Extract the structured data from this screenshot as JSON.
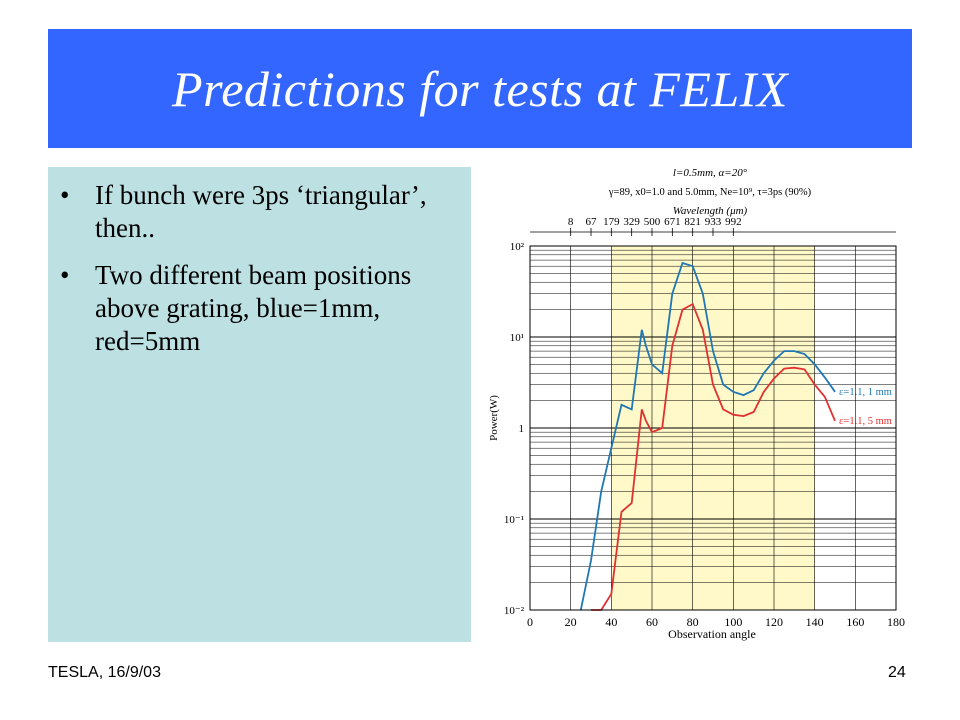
{
  "slide": {
    "title": "Predictions for tests at FELIX",
    "bullets": [
      "If bunch were 3ps ‘triangular’, then..",
      "Two different beam positions above grating, blue=1mm, red=5mm"
    ],
    "footer_left": "TESLA, 16/9/03",
    "page_number": "24"
  },
  "chart_data": {
    "type": "line",
    "header_line1": "l=0.5mm, α=20°",
    "header_line2": "γ=89, x0=1.0 and 5.0mm, Ne=10⁹, τ=3ps (90%)",
    "top_axis_label": "Wavelength (μm)",
    "top_ticks": [
      {
        "angle": 20,
        "label": "8"
      },
      {
        "angle": 30,
        "label": "67"
      },
      {
        "angle": 40,
        "label": "179"
      },
      {
        "angle": 50,
        "label": "329"
      },
      {
        "angle": 60,
        "label": "500"
      },
      {
        "angle": 70,
        "label": "671"
      },
      {
        "angle": 80,
        "label": "821"
      },
      {
        "angle": 90,
        "label": "933"
      },
      {
        "angle": 100,
        "label": "992"
      }
    ],
    "xlabel": "Observation angle",
    "ylabel": "Power(W)",
    "xlim": [
      0,
      180
    ],
    "x_ticks": [
      0,
      20,
      40,
      60,
      80,
      100,
      120,
      140,
      160,
      180
    ],
    "ylim_log10": [
      -2,
      2
    ],
    "y_ticks": [
      {
        "exp": 2,
        "label": "10²"
      },
      {
        "exp": 1,
        "label": "10¹"
      },
      {
        "exp": 0,
        "label": "1"
      },
      {
        "exp": -1,
        "label": "10⁻¹"
      },
      {
        "exp": -2,
        "label": "10⁻²"
      }
    ],
    "shaded_x_range": [
      40,
      140
    ],
    "shade_color": "#fff8c8",
    "series": [
      {
        "name": "ε=1.1, 1 mm",
        "color": "#1f77b4",
        "x": [
          25,
          30,
          35,
          40,
          45,
          50,
          55,
          57,
          60,
          65,
          70,
          75,
          80,
          85,
          90,
          95,
          100,
          105,
          110,
          115,
          120,
          125,
          130,
          135,
          140,
          145,
          150
        ],
        "y": [
          0.01,
          0.035,
          0.2,
          0.6,
          1.8,
          1.6,
          12,
          8,
          5,
          4,
          30,
          65,
          60,
          30,
          7,
          3.0,
          2.5,
          2.3,
          2.6,
          4,
          5.5,
          7,
          7,
          6.5,
          5,
          3.6,
          2.5
        ]
      },
      {
        "name": "ε=1.1, 5 mm",
        "color": "#e03030",
        "x": [
          30,
          35,
          40,
          45,
          50,
          55,
          57,
          60,
          65,
          70,
          75,
          80,
          85,
          90,
          95,
          100,
          105,
          110,
          115,
          120,
          125,
          130,
          135,
          140,
          145,
          150
        ],
        "y": [
          0.01,
          0.01,
          0.015,
          0.12,
          0.15,
          1.6,
          1.2,
          0.9,
          1.0,
          8,
          20,
          23,
          12,
          3,
          1.6,
          1.4,
          1.35,
          1.5,
          2.5,
          3.5,
          4.5,
          4.6,
          4.4,
          3.0,
          2.2,
          1.2
        ]
      }
    ],
    "grid": true
  }
}
